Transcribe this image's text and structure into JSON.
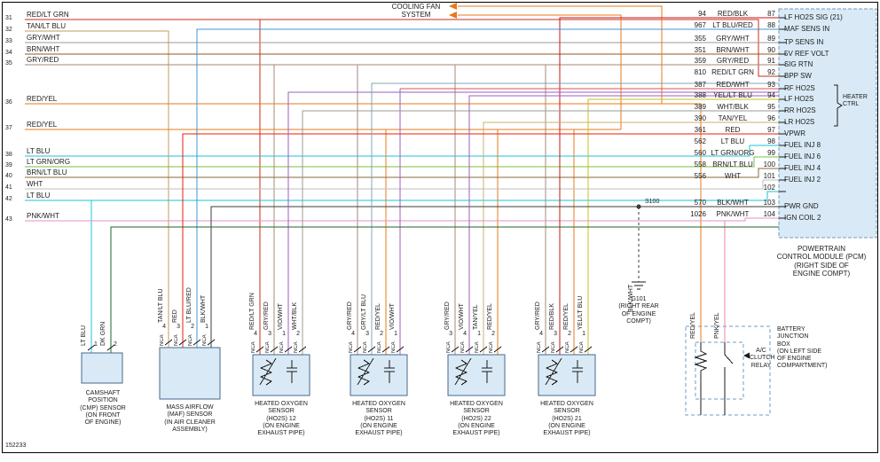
{
  "footer": {
    "doc_number": "152233"
  },
  "cooling_fan": {
    "label": "COOLING FAN\nSYSTEM"
  },
  "left_rows": [
    {
      "num": "31",
      "label": "RED/LT GRN"
    },
    {
      "num": "32",
      "label": "TAN/LT BLU"
    },
    {
      "num": "33",
      "label": "GRY/WHT"
    },
    {
      "num": "34",
      "label": "BRN/WHT"
    },
    {
      "num": "35",
      "label": "GRY/RED"
    },
    {
      "num": "36",
      "label": "RED/YEL"
    },
    {
      "num": "37",
      "label": "RED/YEL"
    },
    {
      "num": "38",
      "label": "LT BLU"
    },
    {
      "num": "39",
      "label": "LT GRN/ORG"
    },
    {
      "num": "40",
      "label": "BRN/LT BLU"
    },
    {
      "num": "41",
      "label": "WHT"
    },
    {
      "num": "42",
      "label": "LT BLU"
    },
    {
      "num": "43",
      "label": "PNK/WHT"
    }
  ],
  "pcm": {
    "caption": "POWERTRAIN\nCONTROL MODULE (PCM)\n(RIGHT SIDE OF\nENGINE COMPT)",
    "heater_ctrl_label": "HEATER\nCTRL",
    "pins": [
      {
        "circuit": "94",
        "color": "RED/BLK",
        "pin": "87",
        "signal": "LF HO2S SIG (21)"
      },
      {
        "circuit": "967",
        "color": "LT BLU/RED",
        "pin": "88",
        "signal": "MAF SENS IN"
      },
      {
        "circuit": "355",
        "color": "GRY/WHT",
        "pin": "89",
        "signal": "TP SENS IN"
      },
      {
        "circuit": "351",
        "color": "BRN/WHT",
        "pin": "90",
        "signal": "5V REF VOLT"
      },
      {
        "circuit": "359",
        "color": "GRY/RED",
        "pin": "91",
        "signal": "SIG RTN"
      },
      {
        "circuit": "810",
        "color": "RED/LT GRN",
        "pin": "92",
        "signal": "BPP SW"
      },
      {
        "circuit": "387",
        "color": "RED/WHT",
        "pin": "93",
        "signal": "RF HO2S"
      },
      {
        "circuit": "388",
        "color": "YEL/LT BLU",
        "pin": "94",
        "signal": "LF HO2S"
      },
      {
        "circuit": "389",
        "color": "WHT/BLK",
        "pin": "95",
        "signal": "RR HO2S"
      },
      {
        "circuit": "390",
        "color": "TAN/YEL",
        "pin": "96",
        "signal": "LR HO2S"
      },
      {
        "circuit": "361",
        "color": "RED",
        "pin": "97",
        "signal": "VPWR"
      },
      {
        "circuit": "562",
        "color": "LT BLU",
        "pin": "98",
        "signal": "FUEL INJ 8"
      },
      {
        "circuit": "560",
        "color": "LT GRN/ORG",
        "pin": "99",
        "signal": "FUEL INJ 6"
      },
      {
        "circuit": "558",
        "color": "BRN/LT BLU",
        "pin": "100",
        "signal": "FUEL INJ 4"
      },
      {
        "circuit": "556",
        "color": "WHT",
        "pin": "101",
        "signal": "FUEL INJ 2"
      },
      {
        "circuit": "",
        "color": "",
        "pin": "102",
        "signal": ""
      },
      {
        "circuit": "570",
        "color": "BLK/WHT",
        "pin": "103",
        "signal": "PWR GND"
      },
      {
        "circuit": "1026",
        "color": "PNK/WHT",
        "pin": "104",
        "signal": "IGN COIL 2"
      }
    ]
  },
  "splice": {
    "label": "S100"
  },
  "ground": {
    "caption": "G101\n(RIGHT REAR\nOF ENGINE\nCOMPT)",
    "wire": "BLK/WHT"
  },
  "bjb": {
    "caption": "BATTERY\nJUNCTION\nBOX\n(ON LEFT SIDE\nOF ENGINE\nCOMPARTMENT)",
    "relay_label": "A/C\nCLUTCH\nRELAY",
    "wires": [
      "RED/YEL",
      "PNK/YEL"
    ]
  },
  "sensors": [
    {
      "caption": "CAMSHAFT\nPOSITION\n(CMP) SENSOR\n(ON FRONT\nOF ENGINE)",
      "pins": [
        {
          "num": "1",
          "wire": "LT BLU"
        },
        {
          "num": "2",
          "wire": "DK GRN"
        }
      ]
    },
    {
      "caption": "MASS AIRFLOW\n(MAF) SENSOR\n(IN AIR CLEANER\nASSEMBLY)",
      "pins": [
        {
          "num": "4",
          "nca": "NCA",
          "wire": "TAN/LT BLU"
        },
        {
          "num": "3",
          "nca": "NCA",
          "wire": "RED"
        },
        {
          "num": "2",
          "nca": "NCA",
          "wire": "LT BLU/RED"
        },
        {
          "num": "1",
          "nca": "NCA",
          "wire": "BLK/WHT"
        }
      ]
    },
    {
      "caption": "HEATED OXYGEN\nSENSOR\n(HO2S) 12\n(ON ENGINE\nEXHAUST PIPE)",
      "pins": [
        {
          "num": "4",
          "nca": "NCA",
          "wire": "RED/LT GRN"
        },
        {
          "num": "3",
          "nca": "NCA",
          "wire": "GRY/RED"
        },
        {
          "num": "1",
          "nca": "NCA",
          "wire": "VIO/WHT"
        },
        {
          "num": "2",
          "nca": "NCA",
          "wire": "WHT/BLK"
        }
      ]
    },
    {
      "caption": "HEATED OXYGEN\nSENSOR\n(HO2S) 11\n(ON ENGINE\nEXHAUST PIPE)",
      "pins": [
        {
          "num": "4",
          "nca": "NCA",
          "wire": "GRY/RED"
        },
        {
          "num": "3",
          "nca": "NCA",
          "wire": "GRY/LT BLU"
        },
        {
          "num": "2",
          "nca": "NCA",
          "wire": "RED/YEL"
        },
        {
          "num": "1",
          "nca": "NCA",
          "wire": "VIO/WHT"
        }
      ]
    },
    {
      "caption": "HEATED OXYGEN\nSENSOR\n(HO2S) 22\n(ON ENGINE\nEXHAUST PIPE)",
      "pins": [
        {
          "num": "3",
          "nca": "NCA",
          "wire": "GRY/RED"
        },
        {
          "num": "4",
          "nca": "NCA",
          "wire": "VIO/WHT"
        },
        {
          "num": "1",
          "nca": "NCA",
          "wire": "TAN/YEL"
        },
        {
          "num": "2",
          "nca": "NCA",
          "wire": "RED/YEL"
        }
      ]
    },
    {
      "caption": "HEATED OXYGEN\nSENSOR\n(HO2S) 21\n(ON ENGINE\nEXHAUST PIPE)",
      "pins": [
        {
          "num": "4",
          "nca": "NCA",
          "wire": "GRY/RED"
        },
        {
          "num": "3",
          "nca": "NCA",
          "wire": "RED/BLK"
        },
        {
          "num": "2",
          "nca": "NCA",
          "wire": "RED/YEL"
        },
        {
          "num": "1",
          "nca": "NCA",
          "wire": "YEL/LT BLU"
        }
      ]
    }
  ],
  "palette": {
    "red_lt_grn": "#cc2a1a",
    "tan_lt_blu": "#c79a62",
    "gry_wht": "#9a9a9a",
    "brn_wht": "#8a5a2b",
    "gry_red": "#a58a7a",
    "red_yel": "#e8791a",
    "lt_blu": "#19c5d8",
    "lt_grn_org": "#74c043",
    "brn_lt_blu": "#8a6a3c",
    "wht": "#bfbfbf",
    "pnk_wht": "#ea8fc5",
    "red_blk": "#c41414",
    "lt_blu_red": "#3f96d6",
    "red_wht": "#e05050",
    "yel_lt_blu": "#c9c020",
    "wht_blk": "#9b9b9b",
    "tan_yel": "#cdb06a",
    "red": "#ec1c0c",
    "blk_wht": "#3c3c3c",
    "dk_grn": "#1a6a28",
    "vio_wht": "#9a5fc0",
    "gry_lt_blu": "#84a4b4",
    "pnk_yel": "#f07fa8",
    "black": "#1a1a1a",
    "box_fill": "#d9eaf6",
    "box_stroke": "#6f9cc4",
    "sensor_stroke": "#47688c",
    "frame": "#000000"
  }
}
